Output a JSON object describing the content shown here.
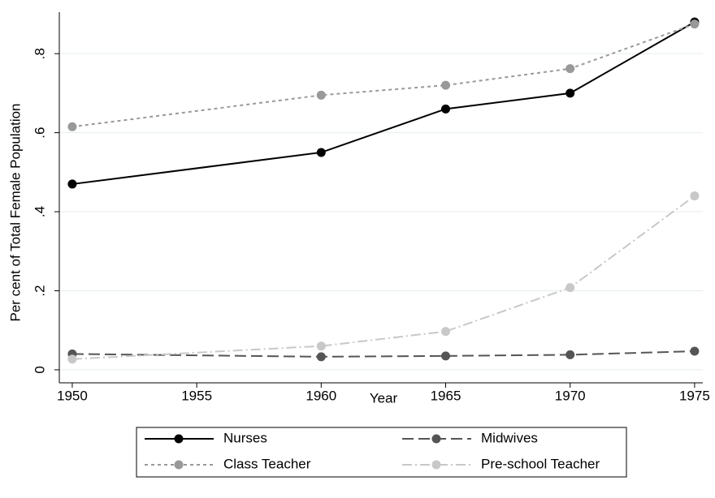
{
  "chart_data": {
    "type": "line",
    "x_label": "Year",
    "y_label": "Per cent of Total Female Population",
    "x": [
      1950,
      1960,
      1965,
      1970,
      1975
    ],
    "xlim": [
      1949.48,
      1975.33
    ],
    "xticks": [
      1950,
      1955,
      1960,
      1965,
      1970,
      1975
    ],
    "ylim": [
      -0.033,
      0.905
    ],
    "yticks": [
      0,
      {
        "value": 0.2,
        "label": ".2"
      },
      {
        "value": 0.4,
        "label": ".4"
      },
      {
        "value": 0.6,
        "label": ".6"
      },
      {
        "value": 0.8,
        "label": ".8"
      }
    ],
    "grid": true,
    "legend": "bottom",
    "series": [
      {
        "name": "Nurses",
        "color": "#000000",
        "line_style": "solid",
        "values": [
          0.47,
          0.55,
          0.66,
          0.7,
          0.88
        ]
      },
      {
        "name": "Midwives",
        "color": "#555555",
        "line_style": "longdash",
        "values": [
          0.04,
          0.033,
          0.035,
          0.038,
          0.047
        ]
      },
      {
        "name": "Class Teacher",
        "color": "#999999",
        "line_style": "shortdash",
        "values": [
          0.615,
          0.695,
          0.72,
          0.762,
          0.875
        ]
      },
      {
        "name": "Pre-school Teacher",
        "color": "#c8c8c8",
        "line_style": "dashdot",
        "values": [
          0.027,
          0.06,
          0.097,
          0.208,
          0.44
        ]
      }
    ]
  }
}
